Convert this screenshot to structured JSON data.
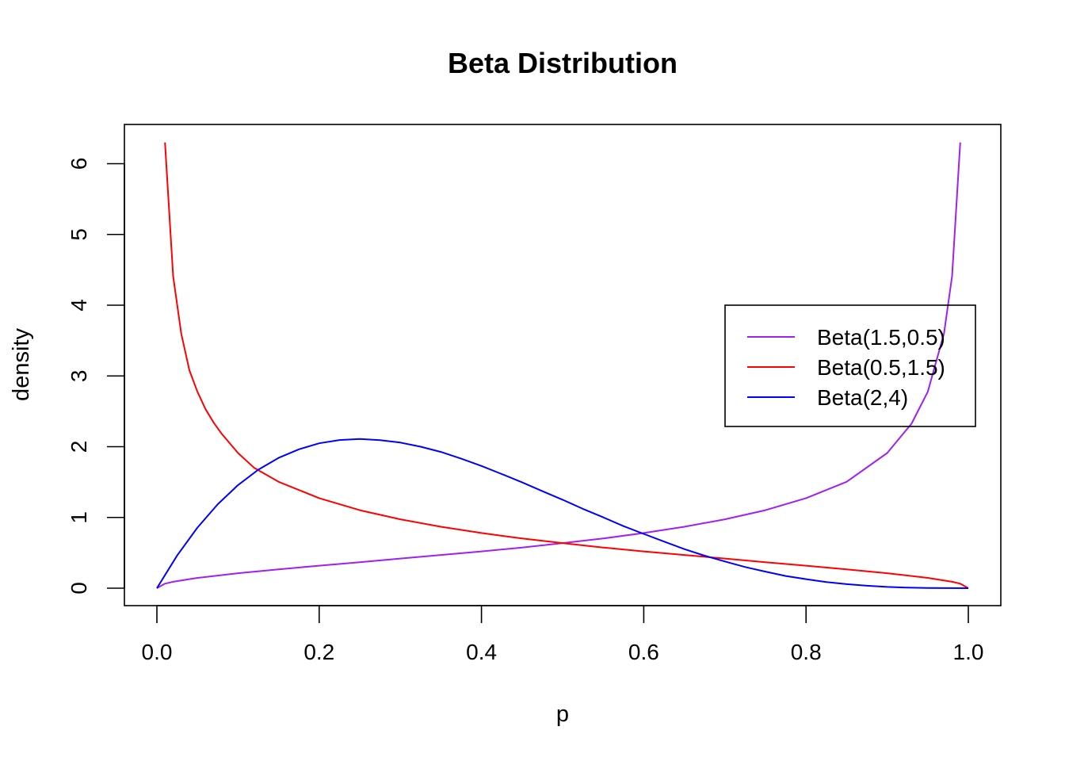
{
  "chart_data": {
    "type": "line",
    "title": "Beta Distribution",
    "xlabel": "p",
    "ylabel": "density",
    "xlim": [
      0,
      1
    ],
    "ylim": [
      0,
      6.3
    ],
    "x_ticks": [
      "0.0",
      "0.2",
      "0.4",
      "0.6",
      "0.8",
      "1.0"
    ],
    "y_ticks": [
      "0",
      "1",
      "2",
      "3",
      "4",
      "5",
      "6"
    ],
    "grid": false,
    "legend_position": "right",
    "legend": [
      "Beta(1.5,0.5)",
      "Beta(0.5,1.5)",
      "Beta(2,4)"
    ],
    "series": [
      {
        "name": "Beta(1.5,0.5)",
        "color": "#a020f0",
        "x": [
          0,
          0.01,
          0.02,
          0.05,
          0.1,
          0.15,
          0.2,
          0.25,
          0.3,
          0.35,
          0.4,
          0.45,
          0.5,
          0.55,
          0.6,
          0.65,
          0.7,
          0.75,
          0.8,
          0.85,
          0.9,
          0.93,
          0.95,
          0.97,
          0.98,
          0.99
        ],
        "y": [
          0,
          0.064,
          0.091,
          0.146,
          0.212,
          0.267,
          0.318,
          0.368,
          0.419,
          0.469,
          0.52,
          0.575,
          0.637,
          0.703,
          0.78,
          0.868,
          0.974,
          1.103,
          1.273,
          1.504,
          1.91,
          2.325,
          2.775,
          3.6,
          4.41,
          6.3
        ]
      },
      {
        "name": "Beta(0.5,1.5)",
        "color": "#ff0000",
        "x": [
          0.01,
          0.02,
          0.03,
          0.04,
          0.05,
          0.06,
          0.07,
          0.08,
          0.1,
          0.12,
          0.15,
          0.2,
          0.25,
          0.3,
          0.35,
          0.4,
          0.45,
          0.5,
          0.55,
          0.6,
          0.65,
          0.7,
          0.75,
          0.8,
          0.85,
          0.9,
          0.95,
          0.98,
          0.99,
          1.0
        ],
        "y": [
          6.3,
          4.41,
          3.6,
          3.08,
          2.775,
          2.53,
          2.34,
          2.18,
          1.91,
          1.7,
          1.504,
          1.273,
          1.103,
          0.974,
          0.868,
          0.78,
          0.703,
          0.637,
          0.575,
          0.52,
          0.469,
          0.419,
          0.368,
          0.318,
          0.267,
          0.212,
          0.146,
          0.091,
          0.064,
          0
        ]
      },
      {
        "name": "Beta(2,4)",
        "color": "#0000ff",
        "x": [
          0,
          0.025,
          0.05,
          0.075,
          0.1,
          0.125,
          0.15,
          0.175,
          0.2,
          0.225,
          0.25,
          0.275,
          0.3,
          0.325,
          0.35,
          0.375,
          0.4,
          0.425,
          0.45,
          0.475,
          0.5,
          0.525,
          0.55,
          0.575,
          0.6,
          0.625,
          0.65,
          0.675,
          0.7,
          0.725,
          0.75,
          0.775,
          0.8,
          0.825,
          0.85,
          0.875,
          0.9,
          0.925,
          0.95,
          0.975,
          1.0
        ],
        "y": [
          0,
          0.463,
          0.857,
          1.187,
          1.458,
          1.675,
          1.842,
          1.963,
          2.048,
          2.094,
          2.109,
          2.093,
          2.058,
          2.0,
          1.926,
          1.831,
          1.728,
          1.614,
          1.497,
          1.371,
          1.25,
          1.122,
          1.002,
          0.877,
          0.768,
          0.659,
          0.552,
          0.459,
          0.378,
          0.299,
          0.234,
          0.173,
          0.128,
          0.087,
          0.057,
          0.035,
          0.018,
          0.008,
          0.003,
          0.001,
          0
        ]
      }
    ]
  }
}
